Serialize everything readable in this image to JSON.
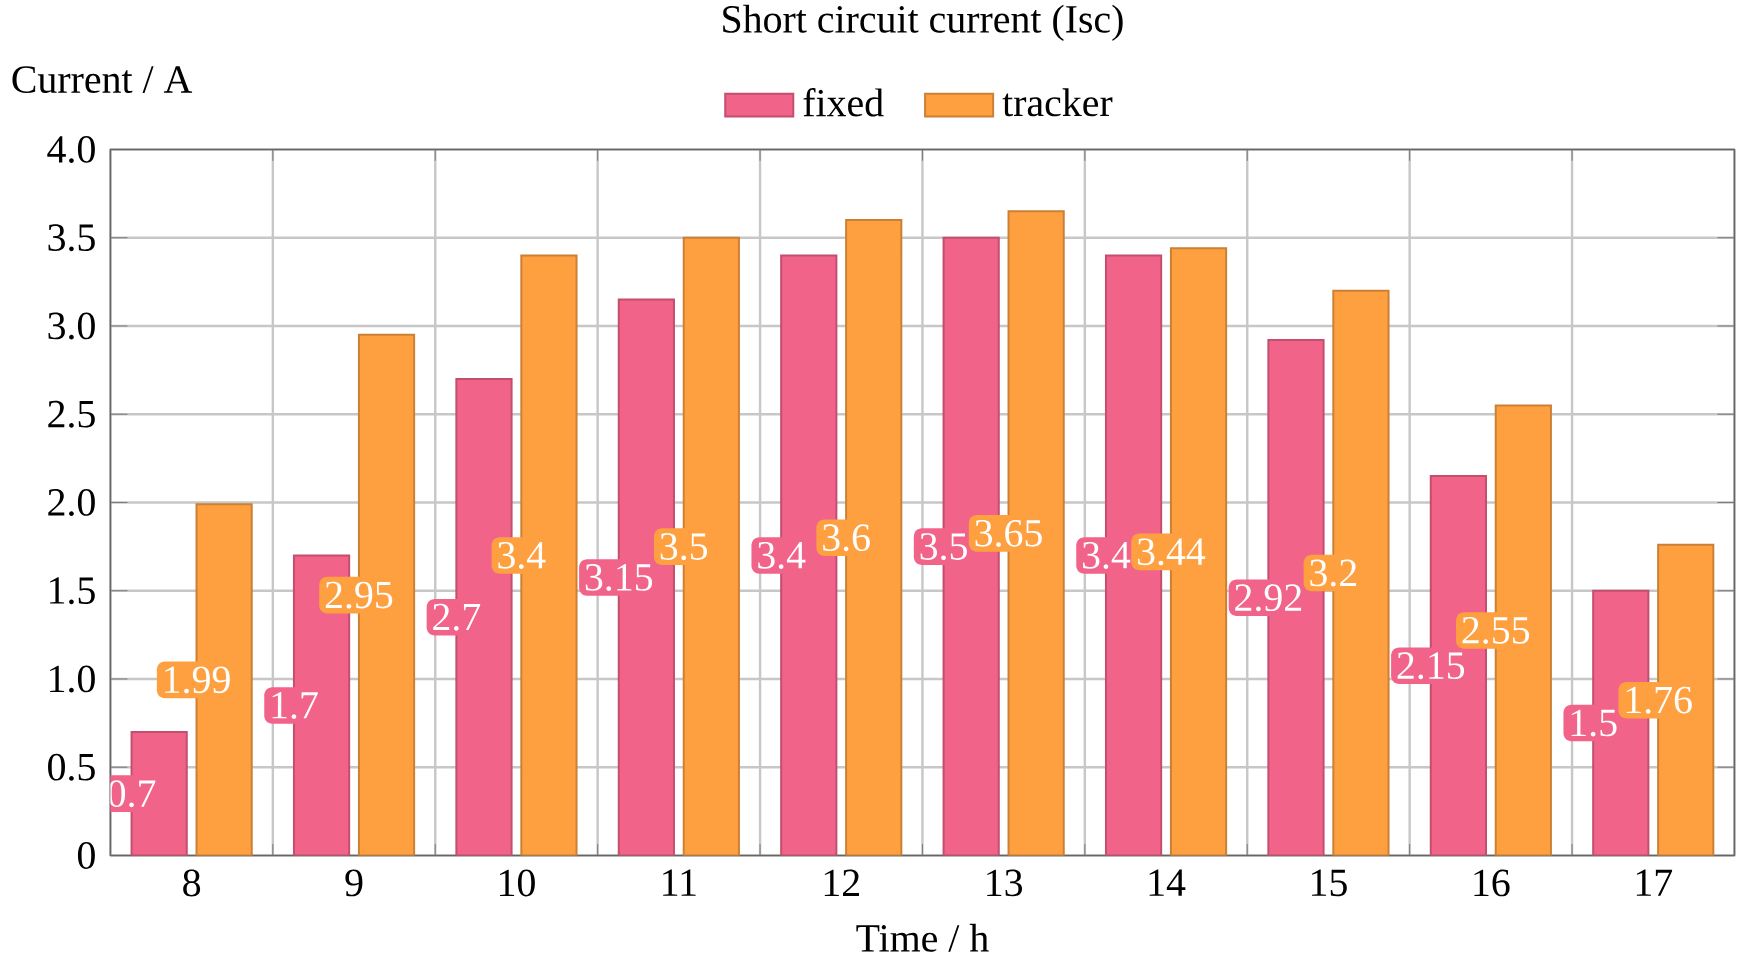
{
  "chart_data": {
    "type": "bar",
    "title": "Short circuit current (Isc)",
    "xlabel": "Time / h",
    "ylabel": "Current / A",
    "categories": [
      "8",
      "9",
      "10",
      "11",
      "12",
      "13",
      "14",
      "15",
      "16",
      "17"
    ],
    "series": [
      {
        "name": "fixed",
        "color": "#f2638a",
        "values": [
          0.7,
          1.7,
          2.7,
          3.15,
          3.4,
          3.5,
          3.4,
          2.92,
          2.15,
          1.5
        ]
      },
      {
        "name": "tracker",
        "color": "#ffa040",
        "values": [
          1.99,
          2.95,
          3.4,
          3.5,
          3.6,
          3.65,
          3.44,
          3.2,
          2.55,
          1.76
        ]
      }
    ],
    "ylim": [
      0,
      4
    ],
    "yticks": [
      0,
      0.5,
      {
        "value": 1,
        "label": "1.0"
      },
      1.5,
      {
        "value": 2,
        "label": "2.0"
      },
      2.5,
      {
        "value": 3,
        "label": "3.0"
      },
      3.5,
      {
        "value": 4,
        "label": "4.0"
      }
    ],
    "grid": true,
    "legend": "top",
    "data_labels": true
  }
}
